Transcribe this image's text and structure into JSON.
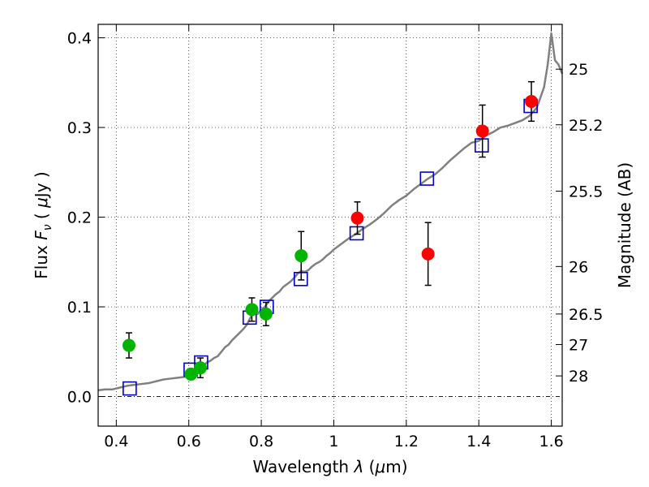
{
  "chart_data": {
    "type": "scatter",
    "xlabel": "Wavelength  λ (μm)",
    "ylabel": "Flux  F_ν  ( μJy )",
    "ylabel_parts": {
      "pre": "Flux  ",
      "var": "F",
      "sub": "ν",
      "mid": "  ( ",
      "mu": "μ",
      "post": "Jy )"
    },
    "xlabel_parts": {
      "pre": "Wavelength  ",
      "var": "λ",
      "mid": " (",
      "mu": "μ",
      "post": "m)"
    },
    "y2label": "Magnitude (AB)",
    "xlim": [
      0.35,
      1.63
    ],
    "ylim": [
      -0.033,
      0.415
    ],
    "grid": true,
    "x_ticks": [
      {
        "value": 0.4,
        "label": "0.4"
      },
      {
        "value": 0.6,
        "label": "0.6"
      },
      {
        "value": 0.8,
        "label": "0.8"
      },
      {
        "value": 1.0,
        "label": "1"
      },
      {
        "value": 1.2,
        "label": "1.2"
      },
      {
        "value": 1.4,
        "label": "1.4"
      },
      {
        "value": 1.6,
        "label": "1.6"
      }
    ],
    "y_ticks": [
      {
        "value": 0.0,
        "label": "0.0"
      },
      {
        "value": 0.1,
        "label": "0.1"
      },
      {
        "value": 0.2,
        "label": "0.2"
      },
      {
        "value": 0.3,
        "label": "0.3"
      },
      {
        "value": 0.4,
        "label": "0.4"
      }
    ],
    "y2_ticks": [
      {
        "flux": 0.365,
        "label": "25"
      },
      {
        "flux": 0.303,
        "label": "25.2"
      },
      {
        "flux": 0.229,
        "label": "25.5"
      },
      {
        "flux": 0.145,
        "label": "26"
      },
      {
        "flux": 0.092,
        "label": "26.5"
      },
      {
        "flux": 0.058,
        "label": "27"
      },
      {
        "flux": 0.023,
        "label": "28"
      }
    ],
    "series": [
      {
        "kind": "line",
        "color": "#808080",
        "x": [
          0.35,
          0.37,
          0.39,
          0.41,
          0.43,
          0.45,
          0.47,
          0.49,
          0.51,
          0.53,
          0.55,
          0.57,
          0.59,
          0.61,
          0.62,
          0.63,
          0.64,
          0.65,
          0.66,
          0.67,
          0.68,
          0.69,
          0.7,
          0.71,
          0.72,
          0.73,
          0.74,
          0.75,
          0.76,
          0.77,
          0.78,
          0.79,
          0.8,
          0.81,
          0.82,
          0.83,
          0.84,
          0.85,
          0.86,
          0.87,
          0.88,
          0.89,
          0.9,
          0.91,
          0.92,
          0.93,
          0.94,
          0.95,
          0.96,
          0.97,
          0.98,
          0.99,
          1.0,
          1.02,
          1.04,
          1.06,
          1.08,
          1.1,
          1.12,
          1.14,
          1.16,
          1.18,
          1.2,
          1.22,
          1.24,
          1.26,
          1.28,
          1.3,
          1.32,
          1.34,
          1.36,
          1.38,
          1.4,
          1.42,
          1.44,
          1.46,
          1.48,
          1.5,
          1.52,
          1.54,
          1.56,
          1.58,
          1.59,
          1.6,
          1.61,
          1.62,
          1.63
        ],
        "y": [
          0.007,
          0.008,
          0.008,
          0.01,
          0.012,
          0.013,
          0.014,
          0.015,
          0.017,
          0.019,
          0.02,
          0.021,
          0.022,
          0.023,
          0.025,
          0.028,
          0.034,
          0.038,
          0.04,
          0.043,
          0.045,
          0.05,
          0.055,
          0.058,
          0.063,
          0.067,
          0.071,
          0.075,
          0.08,
          0.088,
          0.094,
          0.092,
          0.097,
          0.1,
          0.106,
          0.11,
          0.114,
          0.117,
          0.122,
          0.125,
          0.128,
          0.132,
          0.137,
          0.14,
          0.139,
          0.141,
          0.145,
          0.148,
          0.15,
          0.153,
          0.157,
          0.16,
          0.164,
          0.17,
          0.176,
          0.181,
          0.187,
          0.192,
          0.198,
          0.205,
          0.213,
          0.219,
          0.224,
          0.231,
          0.237,
          0.243,
          0.248,
          0.255,
          0.263,
          0.27,
          0.277,
          0.283,
          0.285,
          0.291,
          0.295,
          0.3,
          0.302,
          0.305,
          0.308,
          0.313,
          0.322,
          0.345,
          0.37,
          0.405,
          0.375,
          0.37,
          0.36
        ]
      },
      {
        "kind": "squares",
        "color": "#0000cc",
        "x": [
          0.437,
          0.605,
          0.634,
          0.768,
          0.815,
          0.909,
          1.063,
          1.257,
          1.408,
          1.543
        ],
        "y": [
          0.009,
          0.03,
          0.038,
          0.088,
          0.1,
          0.131,
          0.182,
          0.243,
          0.28,
          0.324
        ]
      },
      {
        "kind": "points",
        "color": "#00b400",
        "x": [
          0.435,
          0.606,
          0.632,
          0.774,
          0.813,
          0.91
        ],
        "y": [
          0.057,
          0.025,
          0.032,
          0.097,
          0.092,
          0.157
        ],
        "yerr": [
          0.014,
          0.006,
          0.011,
          0.013,
          0.013,
          0.027
        ]
      },
      {
        "kind": "points",
        "color": "#ff0000",
        "x": [
          1.065,
          1.26,
          1.41,
          1.545
        ],
        "y": [
          0.199,
          0.159,
          0.296,
          0.329
        ],
        "yerr": [
          0.018,
          0.035,
          0.029,
          0.022
        ]
      }
    ]
  }
}
